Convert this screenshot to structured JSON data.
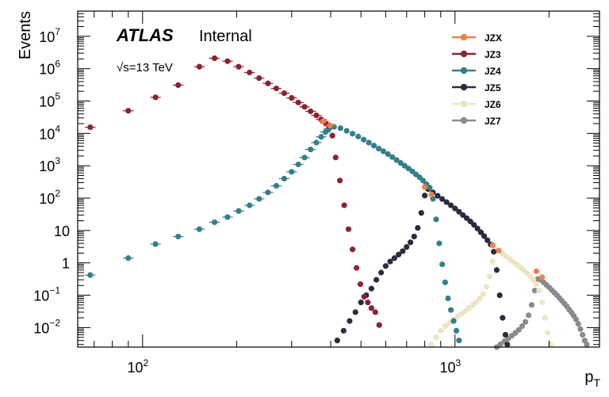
{
  "chart_data": {
    "type": "scatter",
    "title": "",
    "xlabel": "p_T",
    "ylabel": "Events",
    "x_scale": "log",
    "y_scale": "log",
    "xlim": [
      62,
      2900
    ],
    "ylim": [
      0.0025,
      60000000
    ],
    "grid": false,
    "legend": "top-right",
    "annotations": {
      "experiment": "ATLAS",
      "status": "Internal",
      "energy": "√s=13 TeV"
    },
    "x_ticks": [
      {
        "value": 100,
        "base": "10",
        "exp": "2"
      },
      {
        "value": 1000,
        "base": "10",
        "exp": "3"
      }
    ],
    "y_ticks": [
      {
        "value": 0.01,
        "base": "10",
        "exp": "−2"
      },
      {
        "value": 0.1,
        "base": "10",
        "exp": "−1"
      },
      {
        "value": 1,
        "base": "1",
        "exp": ""
      },
      {
        "value": 10,
        "base": "10",
        "exp": ""
      },
      {
        "value": 100,
        "base": "10",
        "exp": "2"
      },
      {
        "value": 1000,
        "base": "10",
        "exp": "3"
      },
      {
        "value": 10000,
        "base": "10",
        "exp": "4"
      },
      {
        "value": 100000,
        "base": "10",
        "exp": "5"
      },
      {
        "value": 1000000,
        "base": "10",
        "exp": "6"
      },
      {
        "value": 10000000,
        "base": "10",
        "exp": "7"
      }
    ],
    "series": [
      {
        "name": "JZX",
        "color": "#f08048",
        "points": [
          [
            379,
            24000
          ],
          [
            398,
            17500
          ],
          [
            800,
            220
          ],
          [
            840,
            130
          ],
          [
            1320,
            3.5
          ],
          [
            1380,
            2.4
          ],
          [
            1820,
            0.55
          ],
          [
            1900,
            0.36
          ]
        ]
      },
      {
        "name": "JZ3",
        "color": "#8e2130",
        "points": [
          [
            68,
            15500
          ],
          [
            90,
            50000
          ],
          [
            110,
            130000
          ],
          [
            130,
            310000
          ],
          [
            152,
            1150000
          ],
          [
            170,
            2100000
          ],
          [
            187,
            1700000
          ],
          [
            203,
            1150000
          ],
          [
            220,
            760000
          ],
          [
            236,
            510000
          ],
          [
            252,
            350000
          ],
          [
            268,
            245000
          ],
          [
            284,
            175000
          ],
          [
            300,
            125000
          ],
          [
            315,
            90000
          ],
          [
            330,
            66000
          ],
          [
            345,
            48000
          ],
          [
            360,
            36000
          ],
          [
            373,
            27000
          ],
          [
            385,
            21000
          ],
          [
            395,
            17000
          ],
          [
            405,
            8500
          ],
          [
            415,
            1800
          ],
          [
            428,
            350
          ],
          [
            442,
            60
          ],
          [
            456,
            11
          ],
          [
            470,
            2.6
          ],
          [
            484,
            0.7
          ],
          [
            498,
            0.22
          ],
          [
            512,
            0.09
          ],
          [
            526,
            0.06
          ],
          [
            540,
            0.04
          ],
          [
            556,
            0.03
          ],
          [
            572,
            0.012
          ]
        ]
      },
      {
        "name": "JZ4",
        "color": "#32808a",
        "points": [
          [
            68,
            0.42
          ],
          [
            90,
            1.4
          ],
          [
            110,
            3.8
          ],
          [
            130,
            6.5
          ],
          [
            152,
            11
          ],
          [
            170,
            18
          ],
          [
            187,
            26
          ],
          [
            203,
            40
          ],
          [
            220,
            60
          ],
          [
            236,
            95
          ],
          [
            252,
            150
          ],
          [
            268,
            240
          ],
          [
            284,
            400
          ],
          [
            300,
            650
          ],
          [
            315,
            1100
          ],
          [
            330,
            1800
          ],
          [
            345,
            3200
          ],
          [
            360,
            5200
          ],
          [
            373,
            7800
          ],
          [
            385,
            11000
          ],
          [
            395,
            14000
          ],
          [
            410,
            16000
          ],
          [
            430,
            14500
          ],
          [
            450,
            12000
          ],
          [
            470,
            9800
          ],
          [
            490,
            8000
          ],
          [
            510,
            6400
          ],
          [
            530,
            5200
          ],
          [
            550,
            4200
          ],
          [
            570,
            3400
          ],
          [
            590,
            2800
          ],
          [
            610,
            2300
          ],
          [
            630,
            1850
          ],
          [
            650,
            1500
          ],
          [
            670,
            1220
          ],
          [
            690,
            1000
          ],
          [
            710,
            820
          ],
          [
            730,
            670
          ],
          [
            750,
            540
          ],
          [
            770,
            440
          ],
          [
            790,
            350
          ],
          [
            810,
            270
          ],
          [
            830,
            210
          ],
          [
            850,
            95
          ],
          [
            870,
            22
          ],
          [
            890,
            4
          ],
          [
            910,
            0.9
          ],
          [
            930,
            0.25
          ],
          [
            950,
            0.08
          ],
          [
            970,
            0.035
          ],
          [
            990,
            0.016
          ],
          [
            1010,
            0.008
          ],
          [
            1030,
            0.004
          ]
        ]
      },
      {
        "name": "JZ5",
        "color": "#2a2c3e",
        "points": [
          [
            420,
            0.004
          ],
          [
            440,
            0.008
          ],
          [
            460,
            0.016
          ],
          [
            480,
            0.03
          ],
          [
            500,
            0.06
          ],
          [
            520,
            0.1
          ],
          [
            540,
            0.16
          ],
          [
            560,
            0.3
          ],
          [
            580,
            0.5
          ],
          [
            600,
            0.8
          ],
          [
            620,
            1.1
          ],
          [
            640,
            1.4
          ],
          [
            660,
            1.8
          ],
          [
            680,
            2.3
          ],
          [
            700,
            3.1
          ],
          [
            720,
            4.3
          ],
          [
            740,
            6.5
          ],
          [
            760,
            12
          ],
          [
            780,
            35
          ],
          [
            800,
            120
          ],
          [
            820,
            190
          ],
          [
            850,
            150
          ],
          [
            880,
            118
          ],
          [
            910,
            94
          ],
          [
            940,
            75
          ],
          [
            970,
            60
          ],
          [
            1000,
            48
          ],
          [
            1030,
            38
          ],
          [
            1060,
            30
          ],
          [
            1090,
            24
          ],
          [
            1120,
            19
          ],
          [
            1150,
            15
          ],
          [
            1180,
            11.5
          ],
          [
            1210,
            8.8
          ],
          [
            1240,
            6.7
          ],
          [
            1270,
            5
          ],
          [
            1300,
            3.7
          ],
          [
            1330,
            2.2
          ],
          [
            1360,
            0.6
          ],
          [
            1390,
            0.1
          ],
          [
            1420,
            0.02
          ],
          [
            1450,
            0.006
          ],
          [
            1470,
            0.003
          ]
        ]
      },
      {
        "name": "JZ6",
        "color": "#ece4c2",
        "points": [
          [
            840,
            0.003
          ],
          [
            870,
            0.005
          ],
          [
            900,
            0.008
          ],
          [
            930,
            0.011
          ],
          [
            960,
            0.014
          ],
          [
            990,
            0.018
          ],
          [
            1020,
            0.022
          ],
          [
            1050,
            0.027
          ],
          [
            1080,
            0.033
          ],
          [
            1110,
            0.041
          ],
          [
            1140,
            0.05
          ],
          [
            1170,
            0.062
          ],
          [
            1200,
            0.08
          ],
          [
            1230,
            0.11
          ],
          [
            1260,
            0.18
          ],
          [
            1290,
            0.38
          ],
          [
            1320,
            1.1
          ],
          [
            1350,
            2.6
          ],
          [
            1380,
            2.3
          ],
          [
            1420,
            1.9
          ],
          [
            1460,
            1.55
          ],
          [
            1500,
            1.28
          ],
          [
            1540,
            1.06
          ],
          [
            1580,
            0.88
          ],
          [
            1620,
            0.72
          ],
          [
            1660,
            0.6
          ],
          [
            1700,
            0.48
          ],
          [
            1740,
            0.38
          ],
          [
            1780,
            0.3
          ],
          [
            1820,
            0.22
          ],
          [
            1860,
            0.14
          ],
          [
            1900,
            0.06
          ],
          [
            1940,
            0.02
          ],
          [
            1980,
            0.007
          ],
          [
            2020,
            0.003
          ]
        ]
      },
      {
        "name": "JZ7",
        "color": "#8b8b8b",
        "points": [
          [
            1360,
            0.0025
          ],
          [
            1400,
            0.0031
          ],
          [
            1440,
            0.0038
          ],
          [
            1480,
            0.0046
          ],
          [
            1520,
            0.0056
          ],
          [
            1560,
            0.0068
          ],
          [
            1600,
            0.0085
          ],
          [
            1640,
            0.011
          ],
          [
            1680,
            0.015
          ],
          [
            1720,
            0.024
          ],
          [
            1760,
            0.05
          ],
          [
            1800,
            0.14
          ],
          [
            1840,
            0.32
          ],
          [
            1880,
            0.3
          ],
          [
            1920,
            0.25
          ],
          [
            1960,
            0.21
          ],
          [
            2000,
            0.175
          ],
          [
            2040,
            0.145
          ],
          [
            2080,
            0.12
          ],
          [
            2120,
            0.1
          ],
          [
            2160,
            0.082
          ],
          [
            2200,
            0.067
          ],
          [
            2240,
            0.055
          ],
          [
            2280,
            0.045
          ],
          [
            2320,
            0.036
          ],
          [
            2360,
            0.029
          ],
          [
            2400,
            0.023
          ],
          [
            2440,
            0.018
          ],
          [
            2480,
            0.013
          ],
          [
            2520,
            0.009
          ],
          [
            2560,
            0.006
          ],
          [
            2600,
            0.004
          ],
          [
            2640,
            0.003
          ]
        ]
      }
    ]
  }
}
